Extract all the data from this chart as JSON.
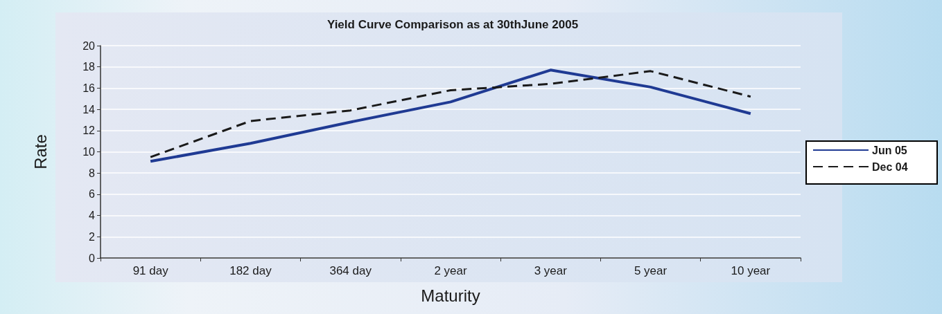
{
  "chart_data": {
    "type": "line",
    "title": "Yield Curve Comparison as at 30thJune 2005",
    "xlabel": "Maturity",
    "ylabel": "Rate",
    "categories": [
      "91 day",
      "182 day",
      "364 day",
      "2 year",
      "3 year",
      "5 year",
      "10 year"
    ],
    "series": [
      {
        "name": "Jun 05",
        "color": "#1f3a93",
        "values": [
          9.1,
          10.8,
          12.8,
          14.7,
          17.7,
          16.1,
          13.6
        ],
        "line_style": "solid"
      },
      {
        "name": "Dec 04",
        "color": "#1a1a1a",
        "values": [
          9.5,
          12.9,
          13.9,
          15.8,
          16.4,
          17.6,
          15.2
        ],
        "line_style": "dashed"
      }
    ],
    "ylim": [
      0,
      20
    ],
    "yticks": [
      0,
      2,
      4,
      6,
      8,
      10,
      12,
      14,
      16,
      18,
      20
    ],
    "grid": "y",
    "legend": "right",
    "marker": "none"
  }
}
